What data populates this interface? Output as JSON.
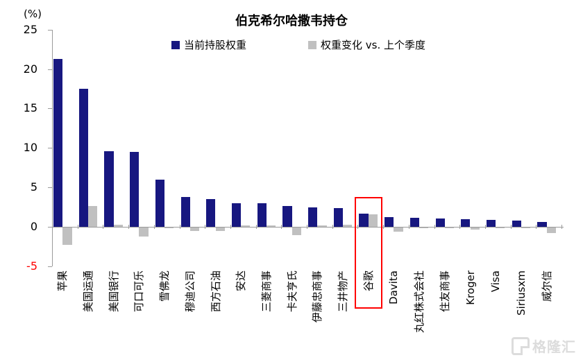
{
  "title": "伯克希尔哈撒韦持仓",
  "unit_label": "(%)",
  "legend": [
    {
      "label": "当前持股权重",
      "color": "#171780"
    },
    {
      "label": "权重变化 vs. 上个季度",
      "color": "#c0c0c0"
    }
  ],
  "watermark": {
    "text": "格隆汇",
    "icon": "gelonghui-logo"
  },
  "chart_data": {
    "type": "bar",
    "title": "伯克希尔哈撒韦持仓",
    "unit": "%",
    "categories": [
      "苹果",
      "美国运通",
      "美国银行",
      "可口可乐",
      "雪佛龙",
      "穆迪公司",
      "西方石油",
      "安达",
      "三菱商事",
      "卡夫亨氏",
      "伊藤忠商事",
      "三井物产",
      "谷歌",
      "Davita",
      "丸红株式会社",
      "住友商事",
      "Kroger",
      "Visa",
      "Siriusxm",
      "威尔信"
    ],
    "series": [
      {
        "name": "当前持股权重",
        "color": "#171780",
        "values": [
          21.3,
          17.5,
          9.6,
          9.5,
          6.0,
          3.8,
          3.5,
          3.0,
          3.0,
          2.6,
          2.5,
          2.4,
          1.7,
          1.2,
          1.15,
          1.05,
          1.0,
          0.85,
          0.8,
          0.65
        ]
      },
      {
        "name": "权重变化 vs. 上个季度",
        "color": "#c0c0c0",
        "values": [
          -2.2,
          2.6,
          0.3,
          -1.1,
          -0.1,
          -0.4,
          -0.4,
          0.2,
          0.2,
          -1.0,
          0.2,
          0.3,
          1.6,
          -0.5,
          -0.1,
          -0.05,
          -0.25,
          -0.05,
          -0.05,
          -0.7
        ]
      }
    ],
    "ylim": [
      -5,
      25
    ],
    "yticks": [
      25,
      20,
      15,
      10,
      5,
      0,
      -5
    ],
    "negative_tick_color": "#ff0000",
    "grid": false,
    "legend_position": "top",
    "highlight": {
      "category": "谷歌",
      "index": 12,
      "box_color": "#ff0000"
    }
  }
}
